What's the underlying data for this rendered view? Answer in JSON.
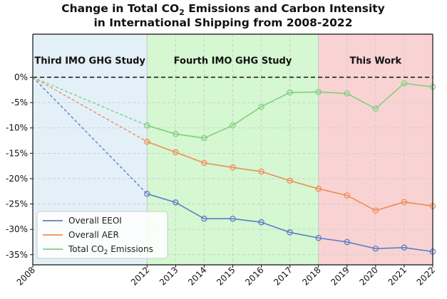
{
  "chart_data": {
    "type": "line",
    "title_line1_prefix": "Change in Total CO",
    "title_line1_sub": "2",
    "title_line1_suffix": " Emissions and Carbon Intensity",
    "title_line2": "in International Shipping from 2008-2022",
    "x": [
      2008,
      2012,
      2013,
      2014,
      2015,
      2016,
      2017,
      2018,
      2019,
      2020,
      2021,
      2022
    ],
    "xlim": [
      2008,
      2022
    ],
    "ylim": [
      -37,
      8.5
    ],
    "yticks": [
      0,
      -5,
      -10,
      -15,
      -20,
      -25,
      -30,
      -35
    ],
    "ytick_labels": [
      "0%",
      "-5%",
      "-10%",
      "-15%",
      "-20%",
      "-25%",
      "-30%",
      "-35%"
    ],
    "grid": true,
    "legend_position": "bottom-left",
    "bands": [
      {
        "label": "Third IMO GHG Study",
        "from": 2008,
        "to": 2012,
        "color": "#e3f0f8"
      },
      {
        "label": "Fourth IMO GHG Study",
        "from": 2012,
        "to": 2018,
        "color": "#d5f7d1"
      },
      {
        "label": "This Work",
        "from": 2018,
        "to": 2022,
        "color": "#f9d3d3"
      }
    ],
    "series": [
      {
        "name": "Overall EEOI",
        "color": "#5a7fc8",
        "values": [
          0,
          -23.0,
          -24.7,
          -27.9,
          -27.9,
          -28.6,
          -30.6,
          -31.7,
          -32.5,
          -33.8,
          -33.6,
          -34.4
        ]
      },
      {
        "name": "Overall AER",
        "color": "#ef8c55",
        "values": [
          0,
          -12.7,
          -14.8,
          -16.9,
          -17.8,
          -18.6,
          -20.4,
          -22.0,
          -23.3,
          -26.3,
          -24.6,
          -25.4
        ]
      },
      {
        "name_prefix": "Total CO",
        "name_sub": "2",
        "name_suffix": " Emissions",
        "color": "#7fd07f",
        "values": [
          0,
          -9.5,
          -11.2,
          -12.0,
          -9.5,
          -5.8,
          -3.0,
          -2.9,
          -3.2,
          -6.2,
          -1.2,
          -1.9
        ]
      }
    ]
  }
}
